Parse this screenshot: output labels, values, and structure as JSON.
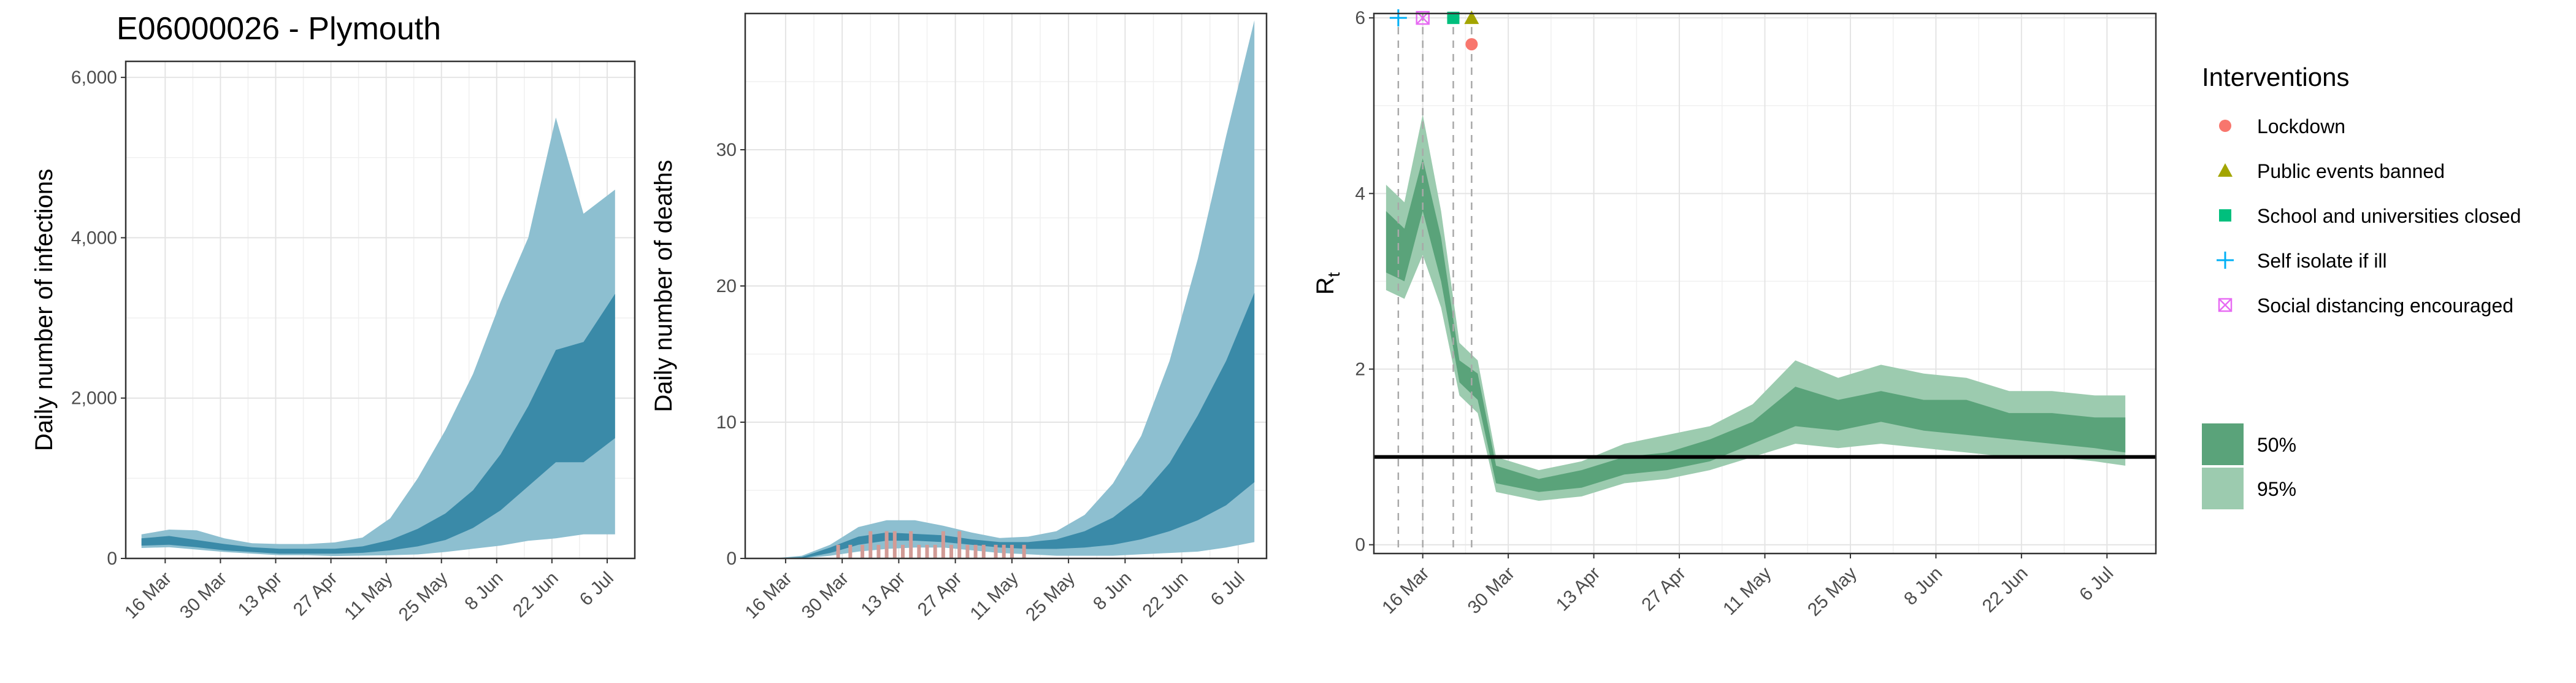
{
  "title": "E06000026 - Plymouth",
  "date_ticks": [
    "16 Mar",
    "30 Mar",
    "13 Apr",
    "27 Apr",
    "11 May",
    "25 May",
    "8 Jun",
    "22 Jun",
    "6 Jul"
  ],
  "colors": {
    "infection_50": "#3a8aa8",
    "infection_95": "#8dbfd0",
    "rt_50": "#5aa37a",
    "rt_95": "#9ccbaf",
    "observed_deaths": "#d29b96",
    "lockdown": "#f8766d",
    "public_events_banned": "#a3a500",
    "school_closed": "#00bf7d",
    "self_isolate": "#00b0f6",
    "social_distancing": "#e76bf3"
  },
  "chart_data": [
    {
      "type": "area",
      "title": "E06000026 - Plymouth",
      "xlabel": "",
      "ylabel": "Daily number of infections",
      "x_range": [
        "2020-03-06",
        "2020-07-13"
      ],
      "ylim": [
        0,
        6200
      ],
      "y_ticks": [
        "0",
        "2,000",
        "4,000",
        "6,000"
      ],
      "y_tick_values": [
        0,
        2000,
        4000,
        6000
      ],
      "x": [
        "2020-03-10",
        "2020-03-17",
        "2020-03-24",
        "2020-03-31",
        "2020-04-07",
        "2020-04-14",
        "2020-04-21",
        "2020-04-28",
        "2020-05-05",
        "2020-05-12",
        "2020-05-19",
        "2020-05-26",
        "2020-06-02",
        "2020-06-09",
        "2020-06-16",
        "2020-06-23",
        "2020-06-30",
        "2020-07-08"
      ],
      "series": [
        {
          "name": "95%",
          "lower": [
            130,
            140,
            110,
            80,
            60,
            40,
            40,
            30,
            35,
            40,
            50,
            80,
            120,
            160,
            220,
            250,
            300,
            300
          ],
          "upper": [
            300,
            360,
            350,
            250,
            190,
            180,
            180,
            200,
            260,
            500,
            1000,
            1600,
            2300,
            3200,
            4000,
            5500,
            4300,
            4600
          ]
        },
        {
          "name": "50%",
          "lower": [
            160,
            170,
            140,
            100,
            80,
            60,
            60,
            60,
            70,
            100,
            150,
            230,
            380,
            600,
            900,
            1200,
            1200,
            1500
          ],
          "upper": [
            250,
            280,
            230,
            180,
            140,
            120,
            120,
            120,
            150,
            230,
            370,
            560,
            850,
            1300,
            1900,
            2600,
            2700,
            3300
          ]
        }
      ]
    },
    {
      "type": "area",
      "title": "",
      "xlabel": "",
      "ylabel": "Daily number of deaths",
      "x_range": [
        "2020-03-06",
        "2020-07-13"
      ],
      "ylim": [
        0,
        40
      ],
      "y_ticks": [
        "0",
        "10",
        "20",
        "30"
      ],
      "y_tick_values": [
        0,
        10,
        20,
        30
      ],
      "x": [
        "2020-03-06",
        "2020-03-13",
        "2020-03-20",
        "2020-03-27",
        "2020-04-03",
        "2020-04-10",
        "2020-04-17",
        "2020-04-24",
        "2020-05-01",
        "2020-05-08",
        "2020-05-15",
        "2020-05-22",
        "2020-05-29",
        "2020-06-05",
        "2020-06-12",
        "2020-06-19",
        "2020-06-26",
        "2020-07-03",
        "2020-07-10"
      ],
      "series": [
        {
          "name": "95%",
          "lower": [
            0,
            0,
            0,
            0.2,
            0.5,
            0.7,
            0.8,
            0.8,
            0.6,
            0.4,
            0.3,
            0.2,
            0.2,
            0.2,
            0.3,
            0.4,
            0.5,
            0.8,
            1.2
          ],
          "upper": [
            0,
            0,
            0.2,
            1.0,
            2.3,
            2.8,
            2.8,
            2.4,
            1.9,
            1.5,
            1.6,
            2.0,
            3.2,
            5.5,
            9.0,
            14.5,
            22.0,
            31.0,
            39.5
          ]
        },
        {
          "name": "50%",
          "lower": [
            0,
            0,
            0,
            0.4,
            1.0,
            1.3,
            1.3,
            1.2,
            1.0,
            0.8,
            0.7,
            0.7,
            0.8,
            1.0,
            1.4,
            2.0,
            2.8,
            3.9,
            5.6
          ],
          "upper": [
            0,
            0,
            0.1,
            0.8,
            1.6,
            1.9,
            1.8,
            1.7,
            1.4,
            1.2,
            1.2,
            1.4,
            2.0,
            3.0,
            4.6,
            7.0,
            10.5,
            14.5,
            19.5
          ]
        }
      ],
      "bars": [
        {
          "x": "2020-03-29",
          "value": 1
        },
        {
          "x": "2020-04-01",
          "value": 1
        },
        {
          "x": "2020-04-04",
          "value": 1
        },
        {
          "x": "2020-04-06",
          "value": 2
        },
        {
          "x": "2020-04-08",
          "value": 1
        },
        {
          "x": "2020-04-10",
          "value": 2
        },
        {
          "x": "2020-04-12",
          "value": 2
        },
        {
          "x": "2020-04-14",
          "value": 1
        },
        {
          "x": "2020-04-16",
          "value": 2
        },
        {
          "x": "2020-04-18",
          "value": 1
        },
        {
          "x": "2020-04-20",
          "value": 1
        },
        {
          "x": "2020-04-22",
          "value": 1
        },
        {
          "x": "2020-04-24",
          "value": 2
        },
        {
          "x": "2020-04-26",
          "value": 1
        },
        {
          "x": "2020-04-28",
          "value": 2
        },
        {
          "x": "2020-04-30",
          "value": 1
        },
        {
          "x": "2020-05-02",
          "value": 1
        },
        {
          "x": "2020-05-04",
          "value": 1
        },
        {
          "x": "2020-05-07",
          "value": 1
        },
        {
          "x": "2020-05-09",
          "value": 1
        },
        {
          "x": "2020-05-11",
          "value": 1
        },
        {
          "x": "2020-05-14",
          "value": 1
        }
      ]
    },
    {
      "type": "area",
      "title": "",
      "xlabel": "",
      "ylabel": "R",
      "ylabel_sub": "t",
      "x_range": [
        "2020-03-08",
        "2020-07-14"
      ],
      "ylim": [
        -0.1,
        6.05
      ],
      "y_ticks": [
        "0",
        "2",
        "4",
        "6"
      ],
      "y_tick_values": [
        0,
        2,
        4,
        6
      ],
      "reference_line": 1,
      "x": [
        "2020-03-10",
        "2020-03-13",
        "2020-03-16",
        "2020-03-19",
        "2020-03-22",
        "2020-03-25",
        "2020-03-28",
        "2020-04-04",
        "2020-04-11",
        "2020-04-18",
        "2020-04-25",
        "2020-05-02",
        "2020-05-09",
        "2020-05-16",
        "2020-05-23",
        "2020-05-30",
        "2020-06-06",
        "2020-06-13",
        "2020-06-20",
        "2020-06-27",
        "2020-07-04",
        "2020-07-09"
      ],
      "series": [
        {
          "name": "95%",
          "lower": [
            2.9,
            2.8,
            3.3,
            2.7,
            1.7,
            1.5,
            0.6,
            0.5,
            0.55,
            0.7,
            0.75,
            0.85,
            1.0,
            1.15,
            1.1,
            1.15,
            1.1,
            1.05,
            1.0,
            1.0,
            0.95,
            0.9
          ],
          "upper": [
            4.1,
            3.9,
            4.9,
            3.8,
            2.3,
            2.1,
            1.0,
            0.85,
            0.95,
            1.15,
            1.25,
            1.35,
            1.6,
            2.1,
            1.9,
            2.05,
            1.95,
            1.9,
            1.75,
            1.75,
            1.7,
            1.7
          ]
        },
        {
          "name": "50%",
          "lower": [
            3.1,
            3.0,
            3.8,
            3.0,
            1.85,
            1.65,
            0.7,
            0.6,
            0.65,
            0.8,
            0.85,
            0.95,
            1.15,
            1.35,
            1.3,
            1.4,
            1.3,
            1.25,
            1.2,
            1.15,
            1.1,
            1.05
          ],
          "upper": [
            3.8,
            3.6,
            4.4,
            3.5,
            2.1,
            1.95,
            0.9,
            0.75,
            0.85,
            1.0,
            1.05,
            1.2,
            1.4,
            1.8,
            1.65,
            1.75,
            1.65,
            1.65,
            1.5,
            1.5,
            1.45,
            1.45
          ]
        }
      ],
      "interventions": [
        {
          "name": "Self isolate if ill",
          "date": "2020-03-12",
          "marker": "plus",
          "y": 6.0
        },
        {
          "name": "Social distancing encouraged",
          "date": "2020-03-16",
          "marker": "square-x",
          "y": 6.0
        },
        {
          "name": "School and universities closed",
          "date": "2020-03-21",
          "marker": "square",
          "y": 6.0
        },
        {
          "name": "Public events banned",
          "date": "2020-03-24",
          "marker": "triangle",
          "y": 6.0
        },
        {
          "name": "Lockdown",
          "date": "2020-03-24",
          "marker": "circle",
          "y": 5.7
        }
      ]
    }
  ],
  "legend": {
    "interventions_title": "Interventions",
    "interventions": [
      {
        "label": "Lockdown",
        "marker": "circle"
      },
      {
        "label": "Public events banned",
        "marker": "triangle"
      },
      {
        "label": "School and universities closed",
        "marker": "square"
      },
      {
        "label": "Self isolate if ill",
        "marker": "plus"
      },
      {
        "label": "Social distancing encouraged",
        "marker": "square-x"
      }
    ],
    "bands": [
      "50%",
      "95%"
    ]
  }
}
